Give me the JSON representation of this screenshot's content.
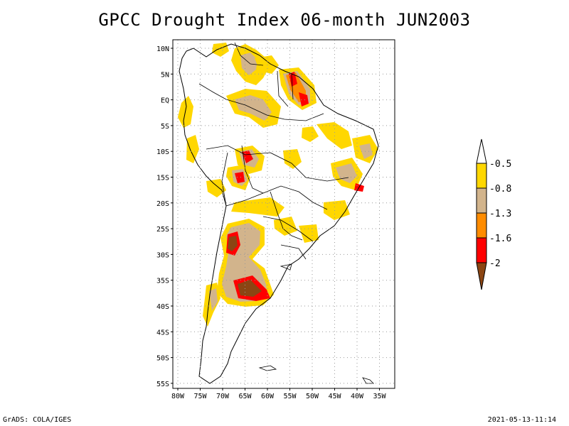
{
  "title": "GPCC Drought Index 06-month JUN2003",
  "footer": {
    "credit": "GrADS: COLA/IGES",
    "timestamp": "2021-05-13-11:14"
  },
  "map": {
    "region": "South America",
    "lat_ticks": [
      "10N",
      "5N",
      "EQ",
      "5S",
      "10S",
      "15S",
      "20S",
      "25S",
      "30S",
      "35S",
      "40S",
      "45S",
      "50S",
      "55S"
    ],
    "lon_ticks": [
      "80W",
      "75W",
      "70W",
      "65W",
      "60W",
      "55W",
      "50W",
      "45W",
      "40W",
      "35W"
    ],
    "grid": true
  },
  "legend": {
    "labels": [
      "-0.5",
      "-0.8",
      "-1.3",
      "-1.6",
      "-2"
    ],
    "colors": [
      "#ffd700",
      "#d2b48c",
      "#ff8c00",
      "#ff0000",
      "#8b4513"
    ]
  },
  "colors": {
    "grid": "#999999",
    "coast": "#000000"
  }
}
